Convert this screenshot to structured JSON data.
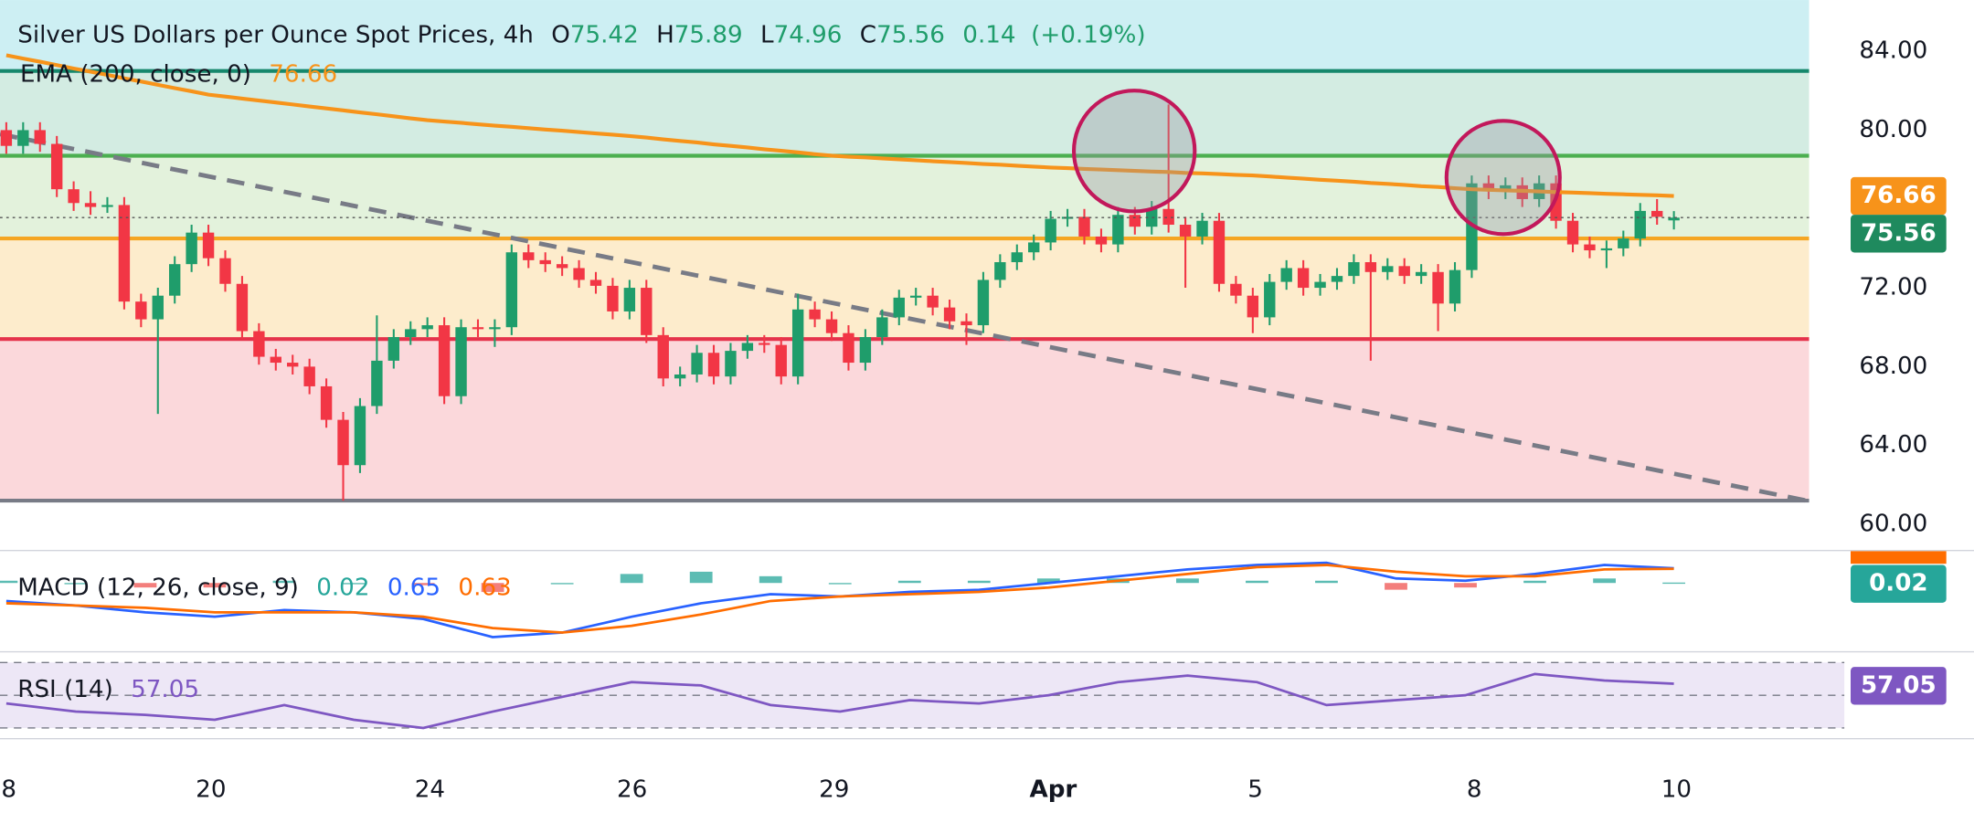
{
  "chart_data": [
    {
      "type": "candlestick",
      "title": "Silver US Dollars per Ounce Spot Prices, 4h",
      "ohlc_prefix": [
        "O",
        "H",
        "L",
        "C"
      ],
      "change": 0.14,
      "change_pct": "(+0.19%)",
      "up_color": "#1f9d6b",
      "down_color": "#f23645",
      "categories": [
        "8",
        null,
        null,
        null,
        null,
        null,
        null,
        null,
        null,
        null,
        null,
        null,
        "20",
        null,
        null,
        null,
        null,
        null,
        null,
        null,
        null,
        null,
        null,
        null,
        null,
        "24",
        null,
        null,
        null,
        null,
        null,
        null,
        null,
        null,
        null,
        null,
        null,
        "26",
        null,
        null,
        null,
        null,
        null,
        null,
        null,
        null,
        null,
        null,
        null,
        "29",
        null,
        null,
        null,
        null,
        null,
        null,
        null,
        null,
        null,
        null,
        null,
        null,
        "Apr",
        null,
        null,
        null,
        null,
        null,
        null,
        null,
        null,
        null,
        null,
        null,
        "5",
        null,
        null,
        null,
        null,
        null,
        null,
        null,
        null,
        null,
        null,
        null,
        null,
        "8",
        null,
        null,
        null,
        null,
        null,
        null,
        null,
        null,
        null,
        null,
        null,
        "10"
      ],
      "candles": [
        [
          80.0,
          80.4,
          78.8,
          79.2
        ],
        [
          79.2,
          80.4,
          78.8,
          80.0
        ],
        [
          80.0,
          80.4,
          78.9,
          79.3
        ],
        [
          79.3,
          79.7,
          76.6,
          77.0
        ],
        [
          77.0,
          77.4,
          75.9,
          76.3
        ],
        [
          76.3,
          76.9,
          75.7,
          76.1
        ],
        [
          76.1,
          76.6,
          75.8,
          76.2
        ],
        [
          76.2,
          76.6,
          70.9,
          71.3
        ],
        [
          71.3,
          71.7,
          70.0,
          70.4
        ],
        [
          70.4,
          72.0,
          65.6,
          71.6
        ],
        [
          71.6,
          73.6,
          71.2,
          73.2
        ],
        [
          73.2,
          75.2,
          72.8,
          74.8
        ],
        [
          74.8,
          75.2,
          73.1,
          73.5
        ],
        [
          73.5,
          73.9,
          71.8,
          72.2
        ],
        [
          72.2,
          72.6,
          69.4,
          69.8
        ],
        [
          69.8,
          70.2,
          68.1,
          68.5
        ],
        [
          68.5,
          68.9,
          67.8,
          68.2
        ],
        [
          68.2,
          68.6,
          67.6,
          68.0
        ],
        [
          68.0,
          68.4,
          66.6,
          67.0
        ],
        [
          67.0,
          67.4,
          64.9,
          65.3
        ],
        [
          65.3,
          65.7,
          61.2,
          63.0
        ],
        [
          63.0,
          66.4,
          62.6,
          66.0
        ],
        [
          66.0,
          70.6,
          65.6,
          68.3
        ],
        [
          68.3,
          69.9,
          67.9,
          69.5
        ],
        [
          69.5,
          70.3,
          69.1,
          69.9
        ],
        [
          69.9,
          70.5,
          69.5,
          70.1
        ],
        [
          70.1,
          70.5,
          66.1,
          66.5
        ],
        [
          66.5,
          70.4,
          66.1,
          70.0
        ],
        [
          70.0,
          70.4,
          69.5,
          69.9
        ],
        [
          69.9,
          70.4,
          69.0,
          70.0
        ],
        [
          70.0,
          74.2,
          69.6,
          73.8
        ],
        [
          73.8,
          74.2,
          73.0,
          73.4
        ],
        [
          73.4,
          73.8,
          72.8,
          73.2
        ],
        [
          73.2,
          73.6,
          72.6,
          73.0
        ],
        [
          73.0,
          73.4,
          72.0,
          72.4
        ],
        [
          72.4,
          72.8,
          71.7,
          72.1
        ],
        [
          72.1,
          72.5,
          70.4,
          70.8
        ],
        [
          70.8,
          72.4,
          70.4,
          72.0
        ],
        [
          72.0,
          72.4,
          69.2,
          69.6
        ],
        [
          69.6,
          70.0,
          67.0,
          67.4
        ],
        [
          67.4,
          68.0,
          67.0,
          67.6
        ],
        [
          67.6,
          69.1,
          67.2,
          68.7
        ],
        [
          68.7,
          69.1,
          67.1,
          67.5
        ],
        [
          67.5,
          69.2,
          67.1,
          68.8
        ],
        [
          68.8,
          69.6,
          68.4,
          69.2
        ],
        [
          69.2,
          69.6,
          68.7,
          69.1
        ],
        [
          69.1,
          69.5,
          67.1,
          67.5
        ],
        [
          67.5,
          71.7,
          67.1,
          70.9
        ],
        [
          70.9,
          71.3,
          70.0,
          70.4
        ],
        [
          70.4,
          70.8,
          69.3,
          69.7
        ],
        [
          69.7,
          70.1,
          67.8,
          68.2
        ],
        [
          68.2,
          69.9,
          67.8,
          69.5
        ],
        [
          69.5,
          70.9,
          69.1,
          70.5
        ],
        [
          70.5,
          71.9,
          70.1,
          71.5
        ],
        [
          71.5,
          72.0,
          71.1,
          71.6
        ],
        [
          71.6,
          72.0,
          70.6,
          71.0
        ],
        [
          71.0,
          71.4,
          69.9,
          70.3
        ],
        [
          70.3,
          70.7,
          69.1,
          70.1
        ],
        [
          70.1,
          72.8,
          69.7,
          72.4
        ],
        [
          72.4,
          73.7,
          72.0,
          73.3
        ],
        [
          73.3,
          74.2,
          72.9,
          73.8
        ],
        [
          73.8,
          74.7,
          73.4,
          74.3
        ],
        [
          74.3,
          75.9,
          73.9,
          75.5
        ],
        [
          75.5,
          76.0,
          75.1,
          75.6
        ],
        [
          75.6,
          76.0,
          74.2,
          74.6
        ],
        [
          74.6,
          75.0,
          73.8,
          74.2
        ],
        [
          74.2,
          76.1,
          73.8,
          75.7
        ],
        [
          75.7,
          76.1,
          74.7,
          75.1
        ],
        [
          75.1,
          76.4,
          74.7,
          76.0
        ],
        [
          76.0,
          81.3,
          74.8,
          75.2
        ],
        [
          75.2,
          75.6,
          72.0,
          74.6
        ],
        [
          74.6,
          75.8,
          74.2,
          75.4
        ],
        [
          75.4,
          75.8,
          71.8,
          72.2
        ],
        [
          72.2,
          72.6,
          71.2,
          71.6
        ],
        [
          71.6,
          72.0,
          69.7,
          70.5
        ],
        [
          70.5,
          72.7,
          70.1,
          72.3
        ],
        [
          72.3,
          73.4,
          71.9,
          73.0
        ],
        [
          73.0,
          73.4,
          71.6,
          72.0
        ],
        [
          72.0,
          72.7,
          71.6,
          72.3
        ],
        [
          72.3,
          73.0,
          71.9,
          72.6
        ],
        [
          72.6,
          73.7,
          72.2,
          73.3
        ],
        [
          73.3,
          73.7,
          68.3,
          72.8
        ],
        [
          72.8,
          73.5,
          72.4,
          73.1
        ],
        [
          73.1,
          73.5,
          72.2,
          72.6
        ],
        [
          72.6,
          73.2,
          72.2,
          72.8
        ],
        [
          72.8,
          73.2,
          69.8,
          71.2
        ],
        [
          71.2,
          73.3,
          70.8,
          72.9
        ],
        [
          72.9,
          77.7,
          72.5,
          77.3
        ],
        [
          77.3,
          77.7,
          76.5,
          76.9
        ],
        [
          76.9,
          77.6,
          76.5,
          77.2
        ],
        [
          77.2,
          77.6,
          76.1,
          76.5
        ],
        [
          76.5,
          77.7,
          76.1,
          77.3
        ],
        [
          77.3,
          77.7,
          75.0,
          75.4
        ],
        [
          75.4,
          75.8,
          73.8,
          74.2
        ],
        [
          74.2,
          74.6,
          73.5,
          73.9
        ],
        [
          73.9,
          74.4,
          73.0,
          74.0
        ],
        [
          74.0,
          74.9,
          73.6,
          74.5
        ],
        [
          74.5,
          76.3,
          74.1,
          75.9
        ],
        [
          75.9,
          76.5,
          75.2,
          75.6
        ],
        [
          75.42,
          75.89,
          74.96,
          75.56
        ]
      ],
      "ema": {
        "name": "EMA (200, close, 0)",
        "color": "#f7931a",
        "values": [
          83.8,
          83.63,
          83.47,
          83.3,
          83.13,
          82.97,
          82.8,
          82.63,
          82.47,
          82.3,
          82.13,
          81.97,
          81.8,
          81.7,
          81.6,
          81.5,
          81.4,
          81.3,
          81.2,
          81.1,
          81.0,
          80.9,
          80.8,
          80.7,
          80.6,
          80.5,
          80.43,
          80.37,
          80.3,
          80.23,
          80.17,
          80.1,
          80.03,
          79.97,
          79.9,
          79.83,
          79.77,
          79.7,
          79.62,
          79.53,
          79.45,
          79.37,
          79.28,
          79.2,
          79.12,
          79.03,
          78.95,
          78.87,
          78.78,
          78.7,
          78.65,
          78.61,
          78.56,
          78.52,
          78.47,
          78.42,
          78.38,
          78.33,
          78.28,
          78.24,
          78.19,
          78.15,
          78.1,
          78.07,
          78.03,
          78.0,
          77.97,
          77.93,
          77.9,
          77.87,
          77.83,
          77.8,
          77.77,
          77.73,
          77.7,
          77.65,
          77.59,
          77.54,
          77.48,
          77.43,
          77.38,
          77.32,
          77.27,
          77.22,
          77.16,
          77.11,
          77.05,
          77.0,
          76.97,
          76.94,
          76.92,
          76.89,
          76.86,
          76.83,
          76.8,
          76.77,
          76.74,
          76.72,
          76.69,
          76.66
        ]
      },
      "ylim": [
        58.7,
        86.6
      ],
      "yticks": [
        {
          "value": 84,
          "label": "84.00"
        },
        {
          "value": 80,
          "label": "80.00"
        },
        {
          "value": 72,
          "label": "72.00"
        },
        {
          "value": 68,
          "label": "68.00"
        },
        {
          "value": 64,
          "label": "64.00"
        },
        {
          "value": 60,
          "label": "60.00"
        }
      ],
      "zones": [
        {
          "from": 83.0,
          "to": 86.6,
          "color": "#cdeff3"
        },
        {
          "from": 78.7,
          "to": 83.0,
          "color": "#d3ece2"
        },
        {
          "from": 74.5,
          "to": 78.7,
          "color": "#e3f2dc"
        },
        {
          "from": 69.4,
          "to": 74.5,
          "color": "#fdeccc"
        },
        {
          "from": 61.2,
          "to": 69.4,
          "color": "#fbd8db"
        }
      ],
      "levels": [
        {
          "value": 83.0,
          "color": "#16886c"
        },
        {
          "value": 78.7,
          "color": "#4caf50"
        },
        {
          "value": 74.5,
          "color": "#f5a623"
        },
        {
          "value": 69.4,
          "color": "#e5334b"
        },
        {
          "value": 61.2,
          "color": "#787b86"
        }
      ],
      "trendline": [
        79.8,
        61.2
      ]
    },
    {
      "type": "macd",
      "name": "MACD (12, 26, close, 9)",
      "ylim": [
        -3,
        1.3
      ],
      "histogram": [
        0.1,
        0,
        -0.2,
        -0.2,
        0.1,
        0,
        -0.1,
        -0.4,
        0,
        0.4,
        0.5,
        0.3,
        0,
        0.1,
        0.1,
        0.2,
        0.2,
        0.2,
        0.1,
        0.1,
        -0.3,
        -0.2,
        0.1,
        0.2,
        0.02
      ],
      "macd": [
        -0.8,
        -1.0,
        -1.3,
        -1.5,
        -1.2,
        -1.3,
        -1.6,
        -2.4,
        -2.2,
        -1.5,
        -0.9,
        -0.5,
        -0.6,
        -0.4,
        -0.3,
        0.0,
        0.3,
        0.6,
        0.8,
        0.9,
        0.2,
        0.1,
        0.4,
        0.8,
        0.65
      ],
      "signal": [
        -0.9,
        -1.0,
        -1.1,
        -1.3,
        -1.3,
        -1.3,
        -1.5,
        -2.0,
        -2.2,
        -1.9,
        -1.4,
        -0.8,
        -0.6,
        -0.5,
        -0.4,
        -0.2,
        0.1,
        0.4,
        0.7,
        0.8,
        0.5,
        0.3,
        0.3,
        0.6,
        0.63
      ],
      "colors": {
        "histogram": "#26a69a",
        "histogram_neg": "#ef5350",
        "macd": "#2962ff",
        "signal": "#ff6d00"
      }
    },
    {
      "type": "rsi",
      "name": "RSI (14)",
      "color": "#7e57c2",
      "ylim": [
        25,
        75
      ],
      "levels": [
        70,
        50,
        30
      ],
      "values": [
        45,
        40,
        38,
        35,
        44,
        35,
        30,
        40,
        49,
        58,
        56,
        44,
        40,
        47,
        45,
        50,
        58,
        62,
        58,
        44,
        47,
        50,
        63,
        59,
        57.05
      ]
    }
  ]
}
